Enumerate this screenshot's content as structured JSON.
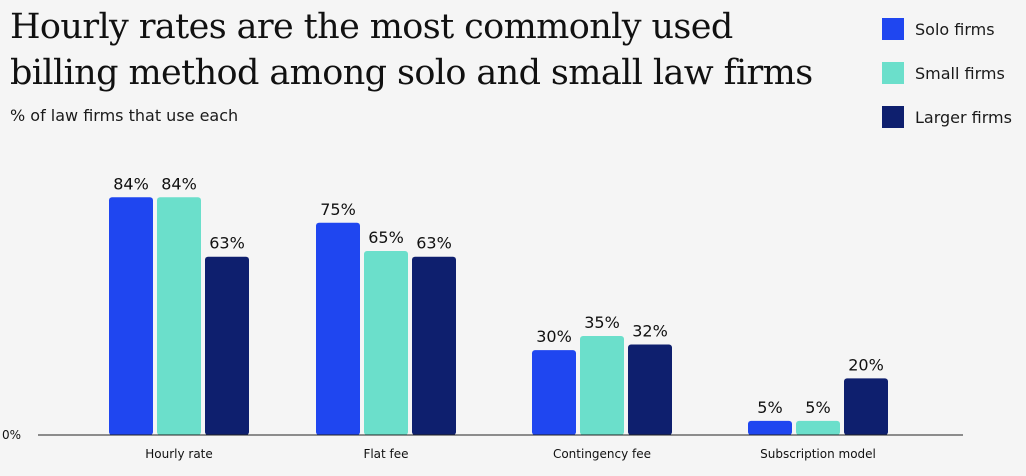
{
  "title": "Hourly rates are the most commonly used billing method among solo and small law firms",
  "subtitle": "% of law firms that use each",
  "colors": {
    "solo": "#1f46f0",
    "small": "#6bdfcb",
    "larger": "#0e1f6e",
    "background": "#f5f5f5",
    "axis": "#222222"
  },
  "legend": [
    {
      "label": "Solo firms",
      "color": "#1f46f0"
    },
    {
      "label": "Small firms",
      "color": "#6bdfcb"
    },
    {
      "label": "Larger firms",
      "color": "#0e1f6e"
    }
  ],
  "chart_data": {
    "type": "bar",
    "title": "Hourly rates are the most commonly used billing method among solo and small law firms",
    "subtitle": "% of law firms that use each",
    "categories": [
      "Hourly rate",
      "Flat fee",
      "Contingency fee",
      "Subscription model"
    ],
    "series": [
      {
        "name": "Solo firms",
        "values": [
          84,
          75,
          30,
          5
        ],
        "labels": [
          "84%",
          "75%",
          "30%",
          "5%"
        ],
        "color": "#1f46f0"
      },
      {
        "name": "Small firms",
        "values": [
          84,
          65,
          35,
          5
        ],
        "labels": [
          "84%",
          "65%",
          "35%",
          "5%"
        ],
        "color": "#6bdfcb"
      },
      {
        "name": "Larger firms",
        "values": [
          63,
          63,
          32,
          20
        ],
        "labels": [
          "63%",
          "63%",
          "32%",
          "20%"
        ],
        "color": "#0e1f6e"
      }
    ],
    "ylim": [
      0,
      100
    ],
    "y_tick_labels": [
      "0%"
    ],
    "xlabel": "",
    "ylabel": "",
    "grid": false,
    "legend_position": "top-right"
  }
}
